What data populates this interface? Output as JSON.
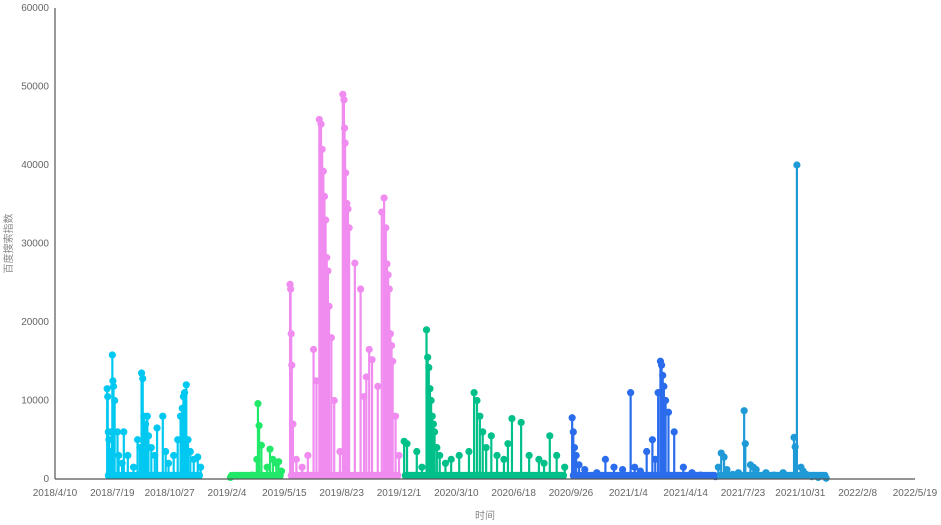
{
  "chart_data": {
    "type": "scatter",
    "title": "",
    "xlabel": "时间",
    "ylabel": "百度搜索指数",
    "ylim": [
      0,
      60000
    ],
    "yticks": [
      0,
      10000,
      20000,
      30000,
      40000,
      50000,
      60000
    ],
    "xlim": [
      "2018-04-10",
      "2022-05-19"
    ],
    "xticks": [
      "2018/4/10",
      "2018/7/19",
      "2018/10/27",
      "2019/2/4",
      "2019/5/15",
      "2019/8/23",
      "2019/12/1",
      "2020/3/10",
      "2020/6/18",
      "2020/9/26",
      "2021/1/4",
      "2021/4/14",
      "2021/7/23",
      "2021/10/31",
      "2022/2/8",
      "2022/5/19"
    ],
    "grid": false,
    "legend": "none",
    "series": [
      {
        "color": "#00c8f0",
        "x": [
          "2018-07-10",
          "2018-07-11",
          "2018-07-12",
          "2018-07-13",
          "2018-07-15",
          "2018-07-18",
          "2018-07-19",
          "2018-07-20",
          "2018-07-21",
          "2018-07-23",
          "2018-07-28",
          "2018-07-30",
          "2018-08-05",
          "2018-08-08",
          "2018-08-15",
          "2018-08-25",
          "2018-09-01",
          "2018-09-05",
          "2018-09-08",
          "2018-09-10",
          "2018-09-12",
          "2018-09-15",
          "2018-09-18",
          "2018-09-20",
          "2018-09-25",
          "2018-10-01",
          "2018-10-05",
          "2018-10-15",
          "2018-10-20",
          "2018-10-25",
          "2018-11-03",
          "2018-11-10",
          "2018-11-15",
          "2018-11-18",
          "2018-11-20",
          "2018-11-22",
          "2018-11-25",
          "2018-11-28",
          "2018-12-02",
          "2018-12-08",
          "2018-12-15",
          "2018-12-20"
        ],
        "y": [
          11500,
          10500,
          6000,
          5000,
          3500,
          6000,
          15800,
          12500,
          11800,
          10000,
          6000,
          3000,
          2000,
          6000,
          3000,
          1500,
          5000,
          4000,
          13500,
          12800,
          8000,
          7000,
          8000,
          5500,
          4000,
          3000,
          6500,
          8000,
          3500,
          2000,
          3000,
          5000,
          8000,
          9000,
          10500,
          11000,
          12000,
          5000,
          3500,
          2500,
          2800,
          1500
        ]
      },
      {
        "color": "#22e86a",
        "x": [
          "2019-02-10",
          "2019-03-01",
          "2019-03-20",
          "2019-03-28",
          "2019-03-30",
          "2019-04-01",
          "2019-04-05",
          "2019-04-15",
          "2019-04-20",
          "2019-04-25",
          "2019-05-01",
          "2019-05-05",
          "2019-05-10"
        ],
        "y": [
          200,
          400,
          500,
          2500,
          9600,
          6800,
          4300,
          1500,
          3800,
          2500,
          2000,
          2200,
          1000
        ]
      },
      {
        "color": "#f08cf0",
        "x": [
          "2019-05-25",
          "2019-05-26",
          "2019-05-27",
          "2019-05-28",
          "2019-05-30",
          "2019-06-05",
          "2019-06-15",
          "2019-06-25",
          "2019-07-05",
          "2019-07-10",
          "2019-07-15",
          "2019-07-18",
          "2019-07-20",
          "2019-07-22",
          "2019-07-24",
          "2019-07-26",
          "2019-07-28",
          "2019-07-30",
          "2019-08-01",
          "2019-08-05",
          "2019-08-10",
          "2019-08-20",
          "2019-08-25",
          "2019-08-27",
          "2019-08-28",
          "2019-08-29",
          "2019-08-30",
          "2019-09-01",
          "2019-09-03",
          "2019-09-05",
          "2019-09-15",
          "2019-09-25",
          "2019-10-01",
          "2019-10-05",
          "2019-10-10",
          "2019-10-15",
          "2019-10-25",
          "2019-11-01",
          "2019-11-05",
          "2019-11-08",
          "2019-11-10",
          "2019-11-12",
          "2019-11-14",
          "2019-11-16",
          "2019-11-18",
          "2019-11-20",
          "2019-11-25",
          "2019-12-01"
        ],
        "y": [
          24800,
          24200,
          18500,
          14500,
          7000,
          2500,
          1500,
          3000,
          16500,
          12500,
          45800,
          45200,
          42000,
          39200,
          36000,
          33000,
          28200,
          26500,
          22000,
          18000,
          10000,
          3500,
          49000,
          48300,
          44700,
          42800,
          39000,
          35100,
          34400,
          32000,
          27500,
          24200,
          10500,
          13000,
          16500,
          15200,
          11800,
          34000,
          35800,
          32000,
          27400,
          26000,
          24200,
          18500,
          17000,
          15000,
          8000,
          3000
        ]
      },
      {
        "color": "#00c08a",
        "x": [
          "2019-12-10",
          "2019-12-15",
          "2020-01-01",
          "2020-01-10",
          "2020-01-18",
          "2020-01-20",
          "2020-01-22",
          "2020-01-24",
          "2020-01-26",
          "2020-01-28",
          "2020-01-30",
          "2020-02-01",
          "2020-02-05",
          "2020-02-10",
          "2020-02-20",
          "2020-03-01",
          "2020-03-15",
          "2020-04-01",
          "2020-04-10",
          "2020-04-15",
          "2020-04-20",
          "2020-04-25",
          "2020-05-01",
          "2020-05-10",
          "2020-05-20",
          "2020-06-01",
          "2020-06-08",
          "2020-06-15",
          "2020-07-01",
          "2020-07-15",
          "2020-08-01",
          "2020-08-10",
          "2020-08-20",
          "2020-09-01",
          "2020-09-15"
        ],
        "y": [
          4800,
          4500,
          3500,
          1500,
          19000,
          15500,
          14200,
          11500,
          10000,
          8000,
          7000,
          6000,
          4000,
          3000,
          2000,
          2500,
          3000,
          3500,
          11000,
          10000,
          8000,
          6000,
          4000,
          5500,
          3000,
          2500,
          4500,
          7700,
          7200,
          3000,
          2500,
          2000,
          5500,
          3000,
          1500
        ]
      },
      {
        "color": "#2a6cec",
        "x": [
          "2020-09-28",
          "2020-09-30",
          "2020-10-02",
          "2020-10-05",
          "2020-10-10",
          "2020-10-20",
          "2020-11-10",
          "2020-11-25",
          "2020-12-10",
          "2020-12-25",
          "2021-01-08",
          "2021-01-15",
          "2021-01-25",
          "2021-02-05",
          "2021-02-15",
          "2021-02-20",
          "2021-02-25",
          "2021-03-01",
          "2021-03-03",
          "2021-03-05",
          "2021-03-07",
          "2021-03-10",
          "2021-03-15",
          "2021-03-25",
          "2021-04-10",
          "2021-04-25",
          "2021-05-10",
          "2021-05-25",
          "2021-06-05"
        ],
        "y": [
          7800,
          6000,
          4000,
          3000,
          1800,
          1200,
          800,
          2500,
          1500,
          1200,
          11000,
          1500,
          1000,
          3500,
          5000,
          2500,
          11000,
          15000,
          14500,
          13200,
          11800,
          10000,
          8500,
          6000,
          1500,
          800,
          500,
          400,
          300
        ]
      },
      {
        "color": "#1f9ad6",
        "x": [
          "2021-06-10",
          "2021-06-15",
          "2021-06-20",
          "2021-06-25",
          "2021-07-05",
          "2021-07-15",
          "2021-07-25",
          "2021-07-27",
          "2021-08-05",
          "2021-08-10",
          "2021-08-15",
          "2021-09-01",
          "2021-09-15",
          "2021-10-01",
          "2021-10-20",
          "2021-10-22",
          "2021-10-25",
          "2021-11-01",
          "2021-11-05",
          "2021-11-10",
          "2021-11-20",
          "2021-12-01",
          "2021-12-15"
        ],
        "y": [
          1500,
          3300,
          2800,
          1200,
          600,
          800,
          8700,
          4500,
          1800,
          1500,
          1200,
          800,
          500,
          800,
          5300,
          4100,
          40000,
          1500,
          1000,
          600,
          300,
          200,
          100
        ]
      }
    ]
  }
}
